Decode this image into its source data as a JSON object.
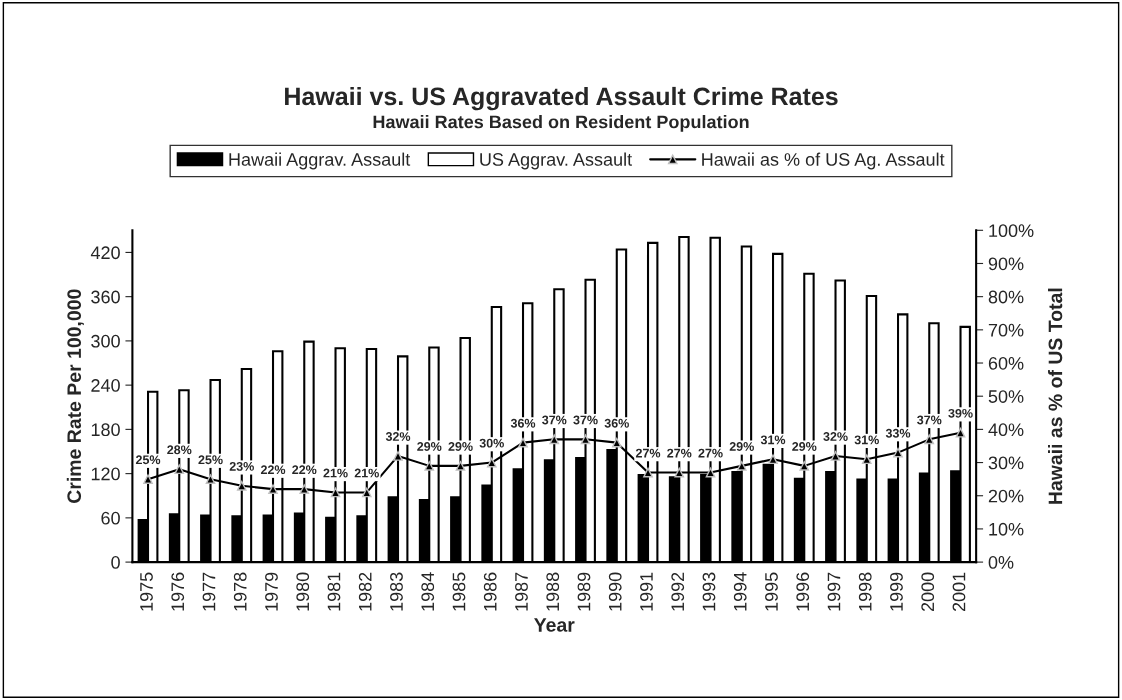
{
  "chart_data": {
    "type": "bar",
    "title": "Hawaii vs. US Aggravated Assault Crime Rates",
    "subtitle": "Hawaii Rates Based on Resident Population",
    "xlabel": "Year",
    "ylabel": "Crime Rate Per 100,000",
    "y2label": "Hawaii as % of US Total",
    "categories": [
      "1975",
      "1976",
      "1977",
      "1978",
      "1979",
      "1980",
      "1981",
      "1982",
      "1983",
      "1984",
      "1985",
      "1986",
      "1987",
      "1988",
      "1989",
      "1990",
      "1991",
      "1992",
      "1993",
      "1994",
      "1995",
      "1996",
      "1997",
      "1998",
      "1999",
      "2000",
      "2001"
    ],
    "series": [
      {
        "name": "Hawaii Aggrav. Assault",
        "color": "#000000",
        "values": [
          57,
          65,
          63,
          62,
          63,
          66,
          60,
          62,
          88,
          84,
          88,
          104,
          126,
          138,
          141,
          152,
          118,
          115,
          118,
          122,
          132,
          113,
          122,
          112,
          112,
          120,
          123
        ]
      },
      {
        "name": "US Aggrav. Assault",
        "color": "#ffffff",
        "values": [
          231,
          233,
          247,
          262,
          286,
          299,
          290,
          289,
          279,
          291,
          304,
          346,
          351,
          370,
          383,
          424,
          433,
          441,
          440,
          428,
          418,
          391,
          382,
          361,
          336,
          324,
          319
        ]
      },
      {
        "name": "Hawaii as % of US Ag. Assault",
        "type": "line",
        "axis": "y2",
        "color": "#000000",
        "marker": "triangle",
        "data_labels": true,
        "values": [
          25,
          28,
          25,
          23,
          22,
          22,
          21,
          21,
          32,
          29,
          29,
          30,
          36,
          37,
          37,
          36,
          27,
          27,
          27,
          29,
          31,
          29,
          32,
          31,
          33,
          37,
          39
        ],
        "value_labels": [
          "25%",
          "28%",
          "25%",
          "23%",
          "22%",
          "22%",
          "21%",
          "21%",
          "32%",
          "29%",
          "29%",
          "30%",
          "36%",
          "37%",
          "37%",
          "36%",
          "27%",
          "27%",
          "27%",
          "29%",
          "31%",
          "29%",
          "32%",
          "31%",
          "33%",
          "37%",
          "39%"
        ]
      }
    ],
    "ylim": [
      0,
      450
    ],
    "yticks": [
      0,
      60,
      120,
      180,
      240,
      300,
      360,
      420
    ],
    "y2lim": [
      0,
      100
    ],
    "y2ticks": [
      {
        "value": 0,
        "label": "0%"
      },
      {
        "value": 10,
        "label": "10%"
      },
      {
        "value": 20,
        "label": "20%"
      },
      {
        "value": 30,
        "label": "30%"
      },
      {
        "value": 40,
        "label": "40%"
      },
      {
        "value": 50,
        "label": "50%"
      },
      {
        "value": 60,
        "label": "60%"
      },
      {
        "value": 70,
        "label": "70%"
      },
      {
        "value": 80,
        "label": "80%"
      },
      {
        "value": 90,
        "label": "90%"
      },
      {
        "value": 100,
        "label": "100%"
      }
    ],
    "grid": false,
    "legend": "top"
  }
}
